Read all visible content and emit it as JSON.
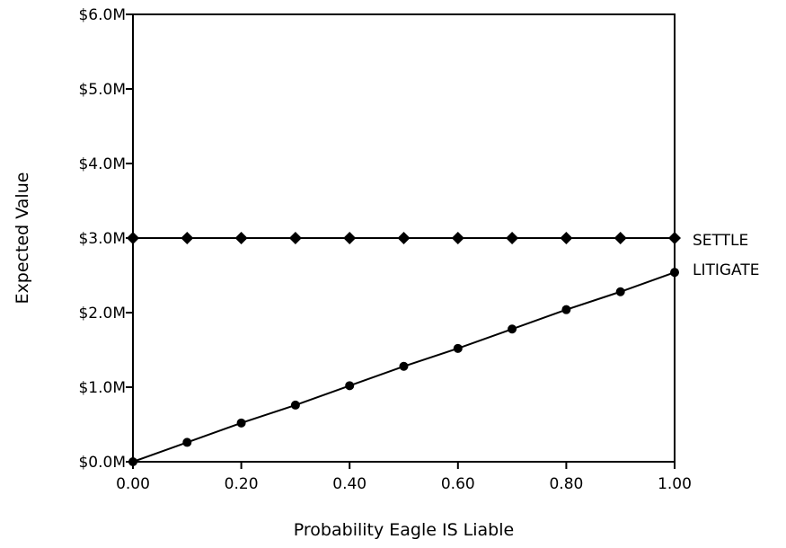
{
  "chart_data": {
    "type": "line",
    "title": "",
    "xlabel": "Probability Eagle IS Liable",
    "ylabel": "Expected Value",
    "xlim": [
      0,
      1
    ],
    "ylim": [
      0,
      6000000
    ],
    "x": [
      0.0,
      0.1,
      0.2,
      0.3,
      0.4,
      0.5,
      0.6,
      0.7,
      0.8,
      0.9,
      1.0
    ],
    "x_ticks": [
      0.0,
      0.2,
      0.4,
      0.6,
      0.8,
      1.0
    ],
    "x_tick_labels": [
      "0.00",
      "0.20",
      "0.40",
      "0.60",
      "0.80",
      "1.00"
    ],
    "y_ticks": [
      0,
      1000000,
      2000000,
      3000000,
      4000000,
      5000000,
      6000000
    ],
    "y_tick_labels": [
      "$0.0M",
      "$1.0M",
      "$2.0M",
      "$3.0M",
      "$4.0M",
      "$5.0M",
      "$6.0M"
    ],
    "grid": false,
    "legend": "labels at line ends (right)",
    "series": [
      {
        "name": "SETTLE",
        "marker": "diamond",
        "color": "#000000",
        "values": [
          3000000,
          3000000,
          3000000,
          3000000,
          3000000,
          3000000,
          3000000,
          3000000,
          3000000,
          3000000,
          3000000
        ]
      },
      {
        "name": "LITIGATE",
        "marker": "circle",
        "color": "#000000",
        "values": [
          0,
          260000,
          520000,
          760000,
          1020000,
          1280000,
          1520000,
          1780000,
          2040000,
          2280000,
          2540000
        ]
      }
    ]
  }
}
